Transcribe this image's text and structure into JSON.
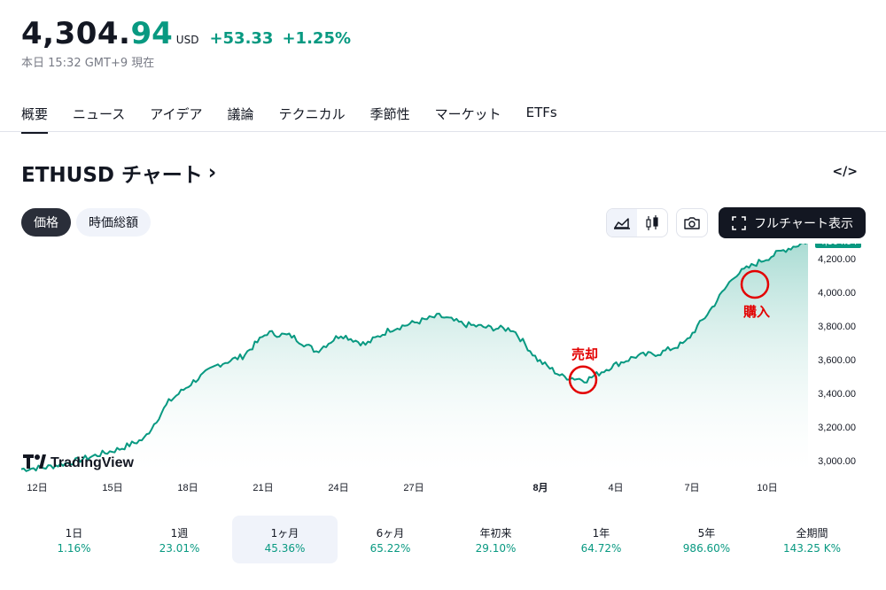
{
  "quote": {
    "price_int": "4,304.",
    "price_dec": "94",
    "currency": "USD",
    "change": "+53.33",
    "change_pct": "+1.25%",
    "timestamp": "本日 15:32 GMT+9 現在",
    "up_color": "#089981"
  },
  "tabs": [
    "概要",
    "ニュース",
    "アイデア",
    "議論",
    "テクニカル",
    "季節性",
    "マーケット",
    "ETFs"
  ],
  "chart_header": {
    "title": "ETHUSD チャート",
    "arrow": "›",
    "embed_label": "</>",
    "toggle_price": "価格",
    "toggle_mcap": "時価総額",
    "fullchart_label": "フルチャート表示"
  },
  "chart_data": {
    "type": "area",
    "x_tick_labels": [
      "12日",
      "15日",
      "18日",
      "21日",
      "24日",
      "27日",
      "8月",
      "4日",
      "7日",
      "10日"
    ],
    "y_tick_labels": [
      "3,000.00",
      "3,200.00",
      "3,400.00",
      "3,600.00",
      "3,800.00",
      "4,000.00",
      "4,200.00"
    ],
    "ylim": [
      3000,
      4304.94
    ],
    "last_price_label": "4,304.94",
    "series": [
      {
        "x": [
          "Jul 11",
          "Jul 12",
          "Jul 13",
          "Jul 14",
          "Jul 15",
          "Jul 16",
          "Jul 17",
          "Jul 18",
          "Jul 19",
          "Jul 20",
          "Jul 21",
          "Jul 22",
          "Jul 23",
          "Jul 24",
          "Jul 25",
          "Jul 26",
          "Jul 27",
          "Jul 28",
          "Jul 29",
          "Jul 30",
          "Jul 31",
          "Aug 1",
          "Aug 2",
          "Aug 3",
          "Aug 4",
          "Aug 5",
          "Aug 6",
          "Aug 7",
          "Aug 8",
          "Aug 9",
          "Aug 10",
          "Aug 11",
          "Aug 12"
        ],
        "values": [
          2950,
          2960,
          2990,
          3030,
          3070,
          3130,
          3350,
          3470,
          3570,
          3620,
          3760,
          3740,
          3650,
          3750,
          3690,
          3780,
          3820,
          3860,
          3810,
          3790,
          3780,
          3600,
          3500,
          3480,
          3560,
          3620,
          3640,
          3700,
          3890,
          4100,
          4180,
          4250,
          4304.94
        ]
      }
    ],
    "annotations": [
      {
        "text": "売却",
        "x": "Aug 2",
        "y": 3480,
        "color": "#e30000"
      },
      {
        "text": "購入",
        "x": "Aug 9",
        "y": 4140,
        "color": "#e30000"
      }
    ],
    "colors": {
      "line": "#089981",
      "fill_top": "#089981",
      "fill_bottom": "#ffffff",
      "marker": "#e30000"
    }
  },
  "brand": {
    "logo_text": "TradingView"
  },
  "periods": [
    {
      "label": "1日",
      "value": "1.16%"
    },
    {
      "label": "1週",
      "value": "23.01%"
    },
    {
      "label": "1ヶ月",
      "value": "45.36%",
      "active": true
    },
    {
      "label": "6ヶ月",
      "value": "65.22%"
    },
    {
      "label": "年初来",
      "value": "29.10%"
    },
    {
      "label": "1年",
      "value": "64.72%"
    },
    {
      "label": "5年",
      "value": "986.60%"
    },
    {
      "label": "全期間",
      "value": "143.25 K%"
    }
  ],
  "icons": {
    "line_chart": "area-chart-icon",
    "candles": "candlestick-icon",
    "camera": "camera-icon",
    "fullscreen": "fullscreen-icon"
  }
}
